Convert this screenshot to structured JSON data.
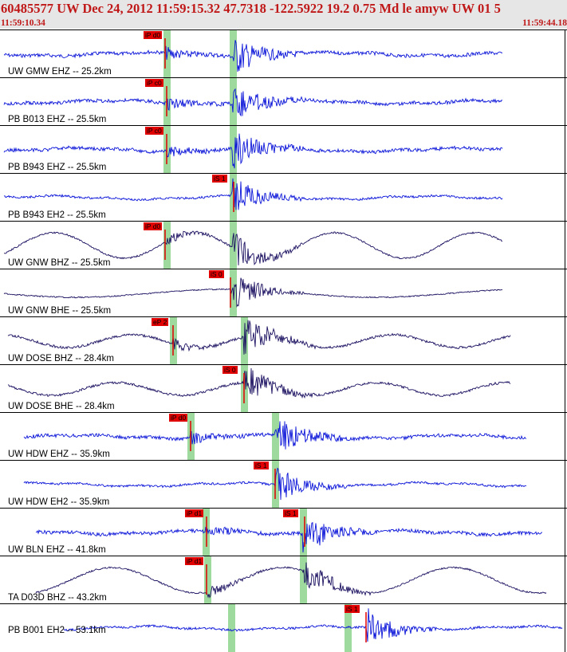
{
  "header": {
    "title": "60485577 UW Dec 24, 2012 11:59:15.32    47.7318 -122.5922 19.2 0.75 Md le amyw UW 01   5",
    "start_time": "11:59:10.34",
    "end_time": "11:59:44.18"
  },
  "colors": {
    "header_bg": "#e6e6e6",
    "header_text": "#c01818",
    "trace_blue": "#0a14d8",
    "trace_navy": "#1a1060",
    "pick_red": "#e00000",
    "window_green": "#9ed99e"
  },
  "traces": [
    {
      "label": "UW GMW EHZ -- 25.2km",
      "color_key": "trace_blue",
      "picks": [
        {
          "text": "iP d0"
        }
      ]
    },
    {
      "label": "PB B013 EHZ -- 25.5km",
      "color_key": "trace_blue",
      "picks": [
        {
          "text": "iP c0"
        }
      ]
    },
    {
      "label": "PB B943 EHZ -- 25.5km",
      "color_key": "trace_blue",
      "picks": [
        {
          "text": "iP c0"
        }
      ]
    },
    {
      "label": "PB B943 EH2 -- 25.5km",
      "color_key": "trace_blue",
      "picks": [
        {
          "text": "iS 1"
        }
      ]
    },
    {
      "label": "UW GNW BHZ -- 25.5km",
      "color_key": "trace_navy",
      "picks": [
        {
          "text": "iP d0"
        }
      ]
    },
    {
      "label": "UW GNW BHE -- 25.5km",
      "color_key": "trace_navy",
      "picks": [
        {
          "text": "iS 0"
        }
      ]
    },
    {
      "label": "UW DOSE BHZ -- 28.4km",
      "color_key": "trace_navy",
      "picks": [
        {
          "text": "eP 2"
        }
      ]
    },
    {
      "label": "UW DOSE BHE -- 28.4km",
      "color_key": "trace_navy",
      "picks": [
        {
          "text": "iS 0"
        }
      ]
    },
    {
      "label": "UW HDW EHZ -- 35.9km",
      "color_key": "trace_blue",
      "picks": [
        {
          "text": "iP d0"
        }
      ]
    },
    {
      "label": "UW HDW EH2 -- 35.9km",
      "color_key": "trace_blue",
      "picks": [
        {
          "text": "iS 1"
        }
      ]
    },
    {
      "label": "UW BLN EHZ -- 41.8km",
      "color_key": "trace_blue",
      "picks": [
        {
          "text": "iP d1"
        },
        {
          "text": "iS 1"
        }
      ]
    },
    {
      "label": "TA D03D BHZ -- 43.2km",
      "color_key": "trace_navy",
      "picks": [
        {
          "text": "iP d1"
        }
      ]
    },
    {
      "label": "PB B001 EH2 -- 53.1km",
      "color_key": "trace_blue",
      "picks": [
        {
          "text": "iS 1"
        }
      ]
    }
  ]
}
